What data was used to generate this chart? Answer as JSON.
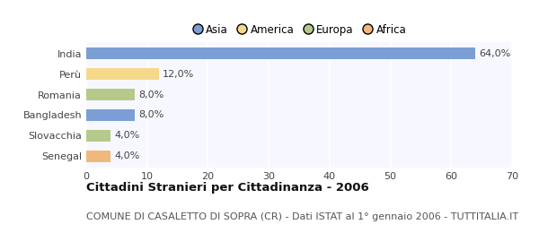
{
  "categories": [
    "India",
    "Perù",
    "Romania",
    "Bangladesh",
    "Slovacchia",
    "Senegal"
  ],
  "values": [
    64.0,
    12.0,
    8.0,
    8.0,
    4.0,
    4.0
  ],
  "bar_colors": [
    "#7b9fd4",
    "#f5d98b",
    "#b5c98a",
    "#7b9fd4",
    "#b5c98a",
    "#f0b87a"
  ],
  "legend_labels": [
    "Asia",
    "America",
    "Europa",
    "Africa"
  ],
  "legend_colors": [
    "#7b9fd4",
    "#f5d98b",
    "#b5c98a",
    "#f0b87a"
  ],
  "xlim": [
    0,
    70
  ],
  "xticks": [
    0,
    10,
    20,
    30,
    40,
    50,
    60,
    70
  ],
  "title": "Cittadini Stranieri per Cittadinanza - 2006",
  "subtitle": "COMUNE DI CASALETTO DI SOPRA (CR) - Dati ISTAT al 1° gennaio 2006 - TUTTITALIA.IT",
  "plot_bg_color": "#f7f8ff",
  "fig_bg_color": "#ffffff",
  "grid_color": "#ffffff",
  "title_fontsize": 9.5,
  "subtitle_fontsize": 8,
  "label_fontsize": 8,
  "tick_fontsize": 8,
  "legend_fontsize": 8.5,
  "bar_height": 0.55
}
